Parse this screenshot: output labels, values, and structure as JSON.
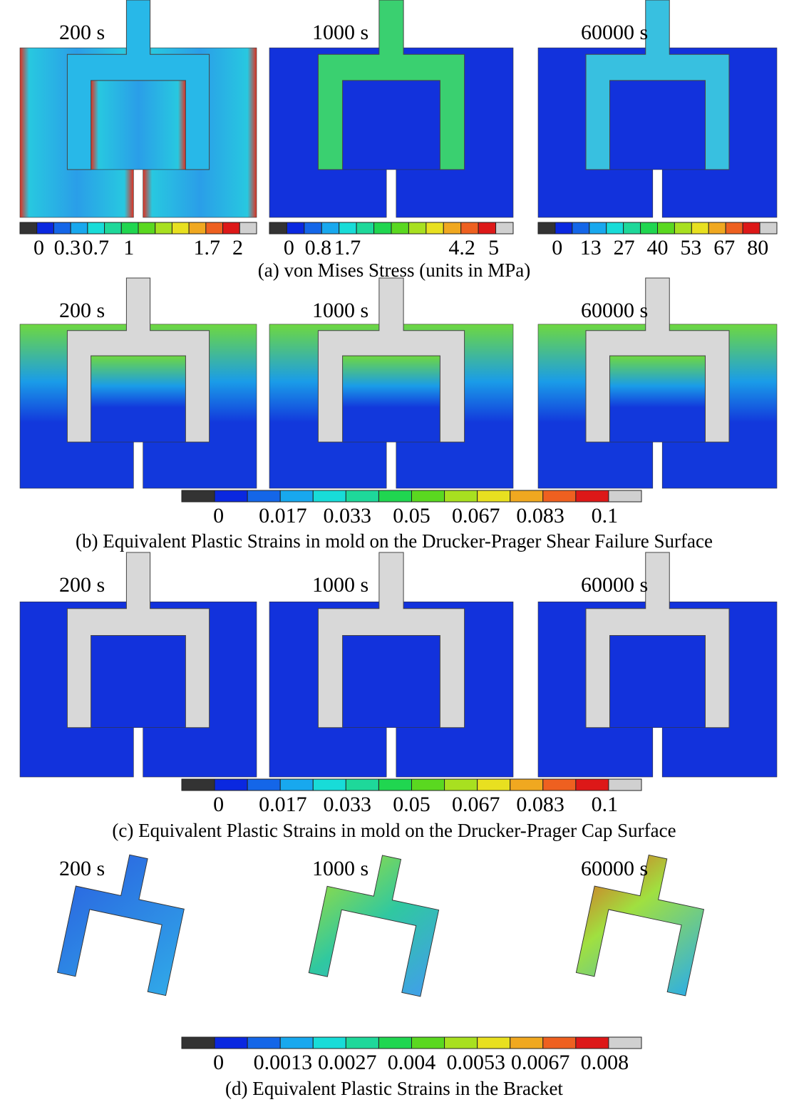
{
  "panels": [
    {
      "time_labels": [
        "200 s",
        "1000 s",
        "60000 s"
      ],
      "colorbars": [
        [
          "0",
          "0.3",
          "0.7",
          "1",
          "1.7",
          "2"
        ],
        [
          "0",
          "0.8",
          "1.7",
          "4.2",
          "5"
        ],
        [
          "0",
          "13",
          "27",
          "40",
          "53",
          "67",
          "80"
        ]
      ],
      "caption": "(a) von Mises Stress (units in MPa)"
    },
    {
      "time_labels": [
        "200 s",
        "1000 s",
        "60000 s"
      ],
      "colorbars": [
        [
          "0",
          "0.017",
          "0.033",
          "0.05",
          "0.067",
          "0.083",
          "0.1"
        ]
      ],
      "caption": "(b) Equivalent Plastic Strains in mold on the Drucker-Prager Shear Failure Surface"
    },
    {
      "time_labels": [
        "200 s",
        "1000 s",
        "60000 s"
      ],
      "colorbars": [
        [
          "0",
          "0.017",
          "0.033",
          "0.05",
          "0.067",
          "0.083",
          "0.1"
        ]
      ],
      "caption": "(c) Equivalent Plastic Strains in mold on the Drucker-Prager Cap Surface"
    },
    {
      "time_labels": [
        "200 s",
        "1000 s",
        "60000 s"
      ],
      "colorbars": [
        [
          "0",
          "0.0013",
          "0.0027",
          "0.004",
          "0.0053",
          "0.0067",
          "0.008"
        ]
      ],
      "caption": "(d) Equivalent Plastic Strains in the Bracket"
    }
  ]
}
